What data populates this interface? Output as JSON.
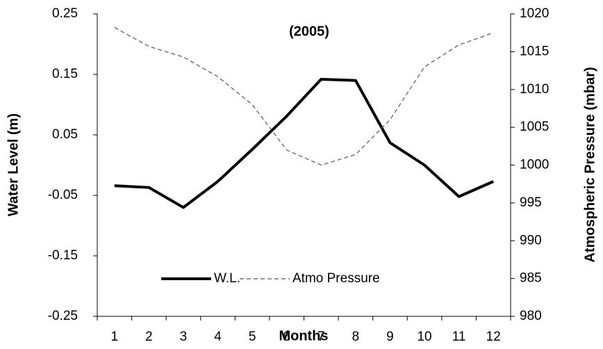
{
  "chart_data": {
    "type": "line",
    "title": "(2005)",
    "x_label": "Months",
    "y_label": "Water  Level (m)",
    "y2_label": "Atmospheric  Pressure (mbar)",
    "categories": [
      "1",
      "2",
      "3",
      "4",
      "5",
      "6",
      "7",
      "8",
      "9",
      "10",
      "11",
      "12"
    ],
    "series": [
      {
        "name": "W.L.",
        "color": "#000000",
        "dash": false,
        "values": [
          -0.034,
          -0.037,
          -0.07,
          -0.027,
          0.026,
          0.081,
          0.142,
          0.14,
          0.037,
          0.0,
          -0.052,
          -0.027
        ]
      },
      {
        "name": "Atmo Pressure",
        "color": "#555555",
        "dash": true,
        "axis": "y2",
        "values": [
          1018.2,
          1015.7,
          1014.3,
          1011.7,
          1008,
          1002,
          1000,
          1001.4,
          1006,
          1013,
          1015.9,
          1017.5
        ]
      }
    ],
    "ylim": [
      -0.25,
      0.25
    ],
    "yticks": [
      -0.25,
      -0.15,
      -0.05,
      0.05,
      0.15,
      0.25
    ],
    "y2lim": [
      980,
      1020
    ],
    "y2ticks": [
      980,
      985,
      990,
      995,
      1000,
      1005,
      1010,
      1015,
      1020
    ],
    "grid": false,
    "legend": "bottom"
  }
}
